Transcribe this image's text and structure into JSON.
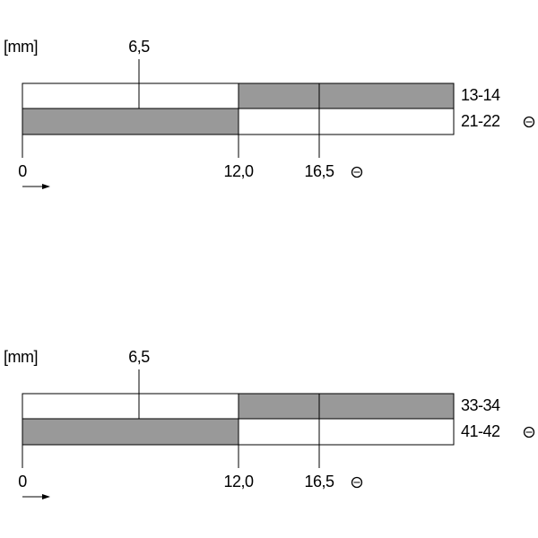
{
  "diagrams": [
    {
      "unit": "[mm]",
      "top_tick": "6,5",
      "bottom_ticks": [
        "0",
        "12,0",
        "16,5"
      ],
      "contacts": [
        "13-14",
        "21-22"
      ]
    },
    {
      "unit": "[mm]",
      "top_tick": "6,5",
      "bottom_ticks": [
        "0",
        "12,0",
        "16,5"
      ],
      "contacts": [
        "33-34",
        "41-42"
      ]
    }
  ]
}
